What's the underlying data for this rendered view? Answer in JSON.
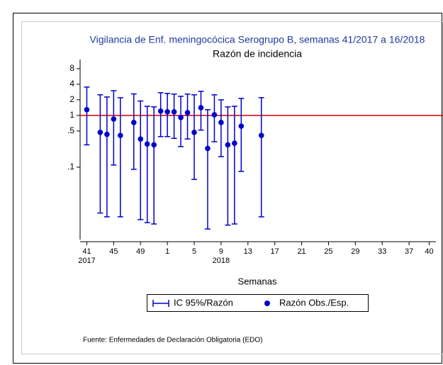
{
  "chart_data": {
    "type": "errorbar",
    "title": "Vigilancia de Enf. meningocócica Serogrupo B, semanas 41/2017 a 16/2018",
    "subtitle": "Razón de incidencia",
    "x_label": "Semanas",
    "source": "Fuente: Enfermedades de Declaración Obligatoria (EDO)",
    "x": [
      41,
      43,
      44,
      45,
      46,
      48,
      49,
      50,
      51,
      52,
      53,
      54,
      55,
      56,
      57,
      58,
      59,
      60,
      61,
      62,
      63,
      64,
      67
    ],
    "series": [
      {
        "name": "IC 95%/Razón",
        "color": "#0000cc",
        "low": [
          0.27,
          0.013,
          0.011,
          0.11,
          0.011,
          0.091,
          0.0097,
          0.0085,
          0.008,
          0.39,
          0.39,
          0.36,
          0.25,
          0.35,
          0.058,
          0.52,
          0.0064,
          0.31,
          0.16,
          0.0076,
          0.008,
          0.083,
          0.011
        ],
        "high": [
          3.53,
          2.5,
          2.27,
          3.0,
          2.2,
          2.6,
          1.9,
          1.5,
          1.46,
          2.74,
          2.66,
          2.58,
          2.34,
          2.58,
          2.5,
          2.92,
          1.29,
          2.5,
          2.0,
          1.46,
          1.5,
          2.13,
          2.2
        ]
      },
      {
        "name": "Razón Obs./Esp.",
        "color": "#0000cc",
        "values": [
          1.29,
          0.47,
          0.43,
          0.85,
          0.41,
          0.73,
          0.35,
          0.28,
          0.27,
          1.21,
          1.17,
          1.17,
          0.91,
          1.13,
          0.47,
          1.41,
          0.23,
          1.03,
          0.73,
          0.27,
          0.29,
          0.62,
          0.41
        ]
      }
    ],
    "reference_line": {
      "value": 1,
      "color": "#cc0000"
    },
    "ylog": true,
    "ylim": [
      0.004,
      12
    ],
    "yticks": [
      8,
      4,
      2,
      1,
      {
        "value": 0.5,
        "label": ".5"
      },
      {
        "value": 0.1,
        "label": ".1"
      }
    ],
    "xlim": [
      40,
      93
    ],
    "xticks": [
      41,
      45,
      49,
      {
        "value": 53,
        "label": "1"
      },
      {
        "value": 57,
        "label": "5"
      },
      {
        "value": 61,
        "label": "9"
      },
      {
        "value": 65,
        "label": "13"
      },
      {
        "value": 69,
        "label": "17"
      },
      {
        "value": 73,
        "label": "21"
      },
      {
        "value": 77,
        "label": "25"
      },
      {
        "value": 81,
        "label": "29"
      },
      {
        "value": 85,
        "label": "33"
      },
      {
        "value": 89,
        "label": "37"
      },
      {
        "value": 92,
        "label": "40"
      }
    ],
    "xtick_years": [
      {
        "value": 41,
        "label": "2017"
      },
      {
        "value": 61,
        "label": "2018"
      }
    ],
    "legend": "bottom"
  }
}
